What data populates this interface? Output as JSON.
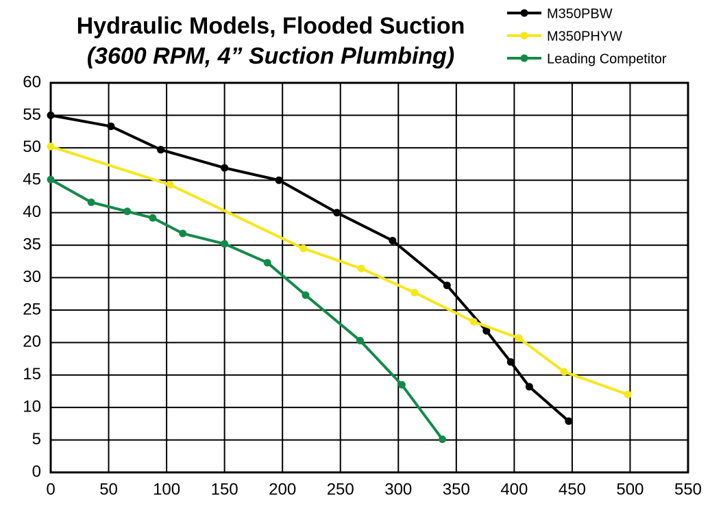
{
  "chart_data": {
    "type": "line",
    "title": "Hydraulic Models, Flooded Suction",
    "subtitle": "(3600 RPM, 4” Suction Plumbing)",
    "xlim": [
      0,
      550
    ],
    "xticks": [
      0,
      50,
      100,
      150,
      200,
      250,
      300,
      350,
      400,
      450,
      500,
      550
    ],
    "ylim": [
      0,
      60
    ],
    "yticks": [
      0,
      5,
      10,
      15,
      20,
      25,
      30,
      35,
      40,
      45,
      50,
      55,
      60
    ],
    "grid": true,
    "legend": "top-right",
    "series": [
      {
        "name": "M350PBW",
        "color": "#000000",
        "x": [
          0,
          52,
          95,
          150,
          197,
          247,
          295,
          342,
          376,
          397,
          413,
          447
        ],
        "values": [
          55,
          53.3,
          49.7,
          46.9,
          45,
          40,
          35.7,
          28.8,
          21.8,
          17,
          13.2,
          7.9
        ]
      },
      {
        "name": "M350PHYW",
        "color": "#f5e71c",
        "x": [
          0,
          103,
          218,
          268,
          314,
          365,
          404,
          443,
          498
        ],
        "values": [
          50.2,
          44.3,
          34.5,
          31.4,
          27.7,
          23.2,
          20.7,
          15.5,
          12
        ]
      },
      {
        "name": "Leading Competitor",
        "color": "#138a4a",
        "x": [
          0,
          35,
          66,
          88,
          114,
          150,
          187,
          220,
          267,
          303,
          338
        ],
        "values": [
          45.1,
          41.6,
          40.2,
          39.2,
          36.8,
          35.2,
          32.3,
          27.3,
          20.3,
          13.5,
          5.1
        ]
      }
    ]
  }
}
